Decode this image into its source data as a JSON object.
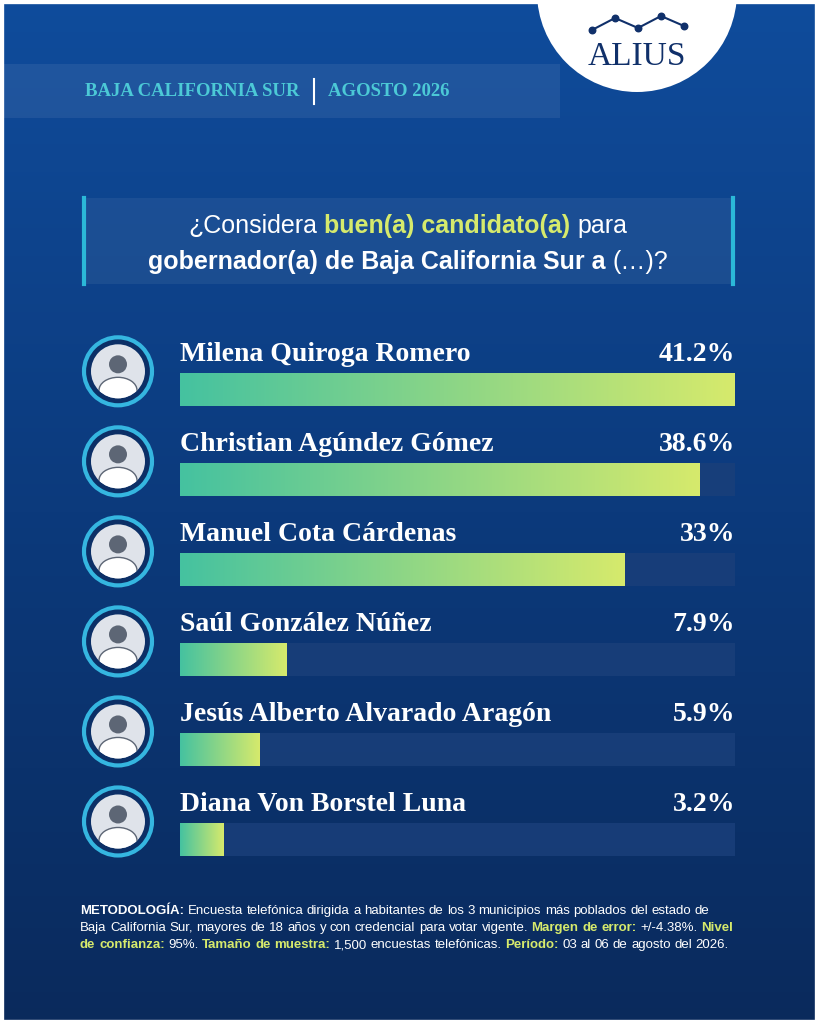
{
  "header": {
    "region": "BAJA CALIFORNIA SUR",
    "date": "AGOSTO 2026",
    "logo": "ALIUS"
  },
  "question": {
    "lines": [
      [
        {
          "text": "¿Considera",
          "style": "plain"
        },
        {
          "text": "buen(a) candidato(a)",
          "style": "highlight"
        },
        {
          "text": "para",
          "style": "plain"
        }
      ],
      [
        {
          "text": "gobernador(a) de Baja California Sur a",
          "style": "bold"
        },
        {
          "text": "(…)?",
          "style": "plain"
        }
      ]
    ]
  },
  "chart_data": {
    "type": "bar",
    "orientation": "horizontal",
    "categories": [
      "Milena Quiroga Romero",
      "Christian Agúndez Gómez",
      "Manuel Cota Cárdenas",
      "Saúl González Núñez",
      "Jesús Alberto Alvarado Aragón",
      "Diana Von Borstel Luna"
    ],
    "values": [
      41.2,
      38.6,
      33,
      7.9,
      5.9,
      3.2
    ],
    "value_labels": [
      "41.2%",
      "38.6%",
      "33%",
      "7.9%",
      "5.9%",
      "3.2%"
    ],
    "xlim": [
      0,
      41.2
    ],
    "data_labels": true,
    "tick_labels": false,
    "grid": false,
    "color": "#d6ea6c"
  },
  "methodology": [
    {
      "text": "METODOLOGÍA:",
      "style": "bold"
    },
    {
      "text": "Encuesta telefónica dirigida a habitantes de los 3 municipios más poblados del estado de Baja California Sur, mayores de 18 años y con credencial para votar vigente.",
      "style": "plain"
    },
    {
      "text": "Margen de error:",
      "style": "highlight"
    },
    {
      "text": "+/-4.38%.",
      "style": "plain"
    },
    {
      "text": "Nivel de confianza:",
      "style": "highlight"
    },
    {
      "text": "95%.",
      "style": "plain"
    },
    {
      "text": "Tamaño de muestra:",
      "style": "highlight"
    },
    {
      "text": "1,500 encuestas telefónicas.",
      "style": "plain"
    },
    {
      "text": "Período:",
      "style": "highlight"
    },
    {
      "text": "03 al 06 de agosto del 2026.",
      "style": "plain"
    }
  ]
}
